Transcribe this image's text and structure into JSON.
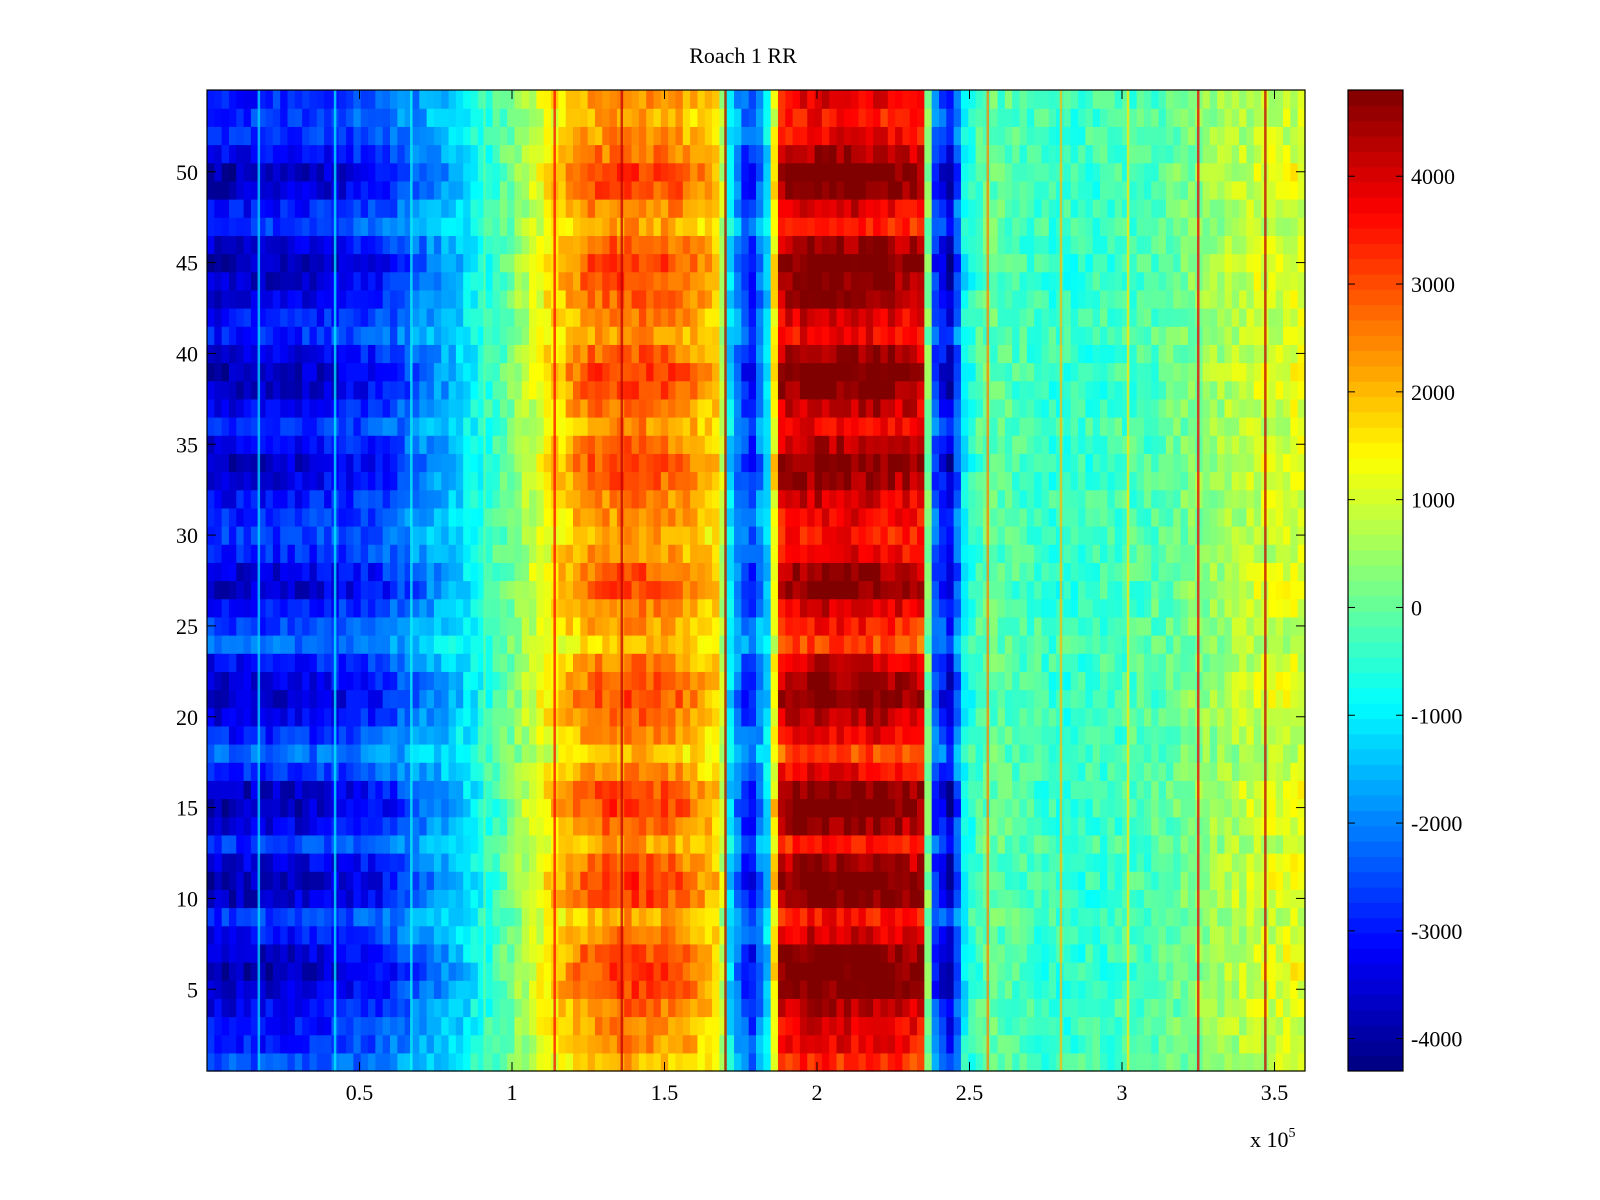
{
  "chart_data": {
    "type": "heatmap",
    "title": "Roach 1 RR",
    "xlabel": "",
    "ylabel": "",
    "x_exponent_label": "x 10",
    "x_exponent": "5",
    "xlim": [
      0,
      3.6
    ],
    "ylim": [
      0.5,
      54.5
    ],
    "x_ticks": [
      0.5,
      1,
      1.5,
      2,
      2.5,
      3,
      3.5
    ],
    "x_tick_labels": [
      "0.5",
      "1",
      "1.5",
      "2",
      "2.5",
      "3",
      "3.5"
    ],
    "y_ticks": [
      5,
      10,
      15,
      20,
      25,
      30,
      35,
      40,
      45,
      50
    ],
    "y_tick_labels": [
      "5",
      "10",
      "15",
      "20",
      "25",
      "30",
      "35",
      "40",
      "45",
      "50"
    ],
    "colormap": "jet",
    "clim": [
      -4300,
      4800
    ],
    "colorbar_ticks": [
      -4000,
      -3000,
      -2000,
      -1000,
      0,
      1000,
      2000,
      3000,
      4000
    ],
    "colorbar_tick_labels": [
      "-4000",
      "-3000",
      "-2000",
      "-1000",
      "0",
      "1000",
      "2000",
      "3000",
      "4000"
    ],
    "n_rows": 54,
    "column_profile": [
      {
        "x": 0.0,
        "value": -3600
      },
      {
        "x": 0.3,
        "value": -3400
      },
      {
        "x": 0.55,
        "value": -3000
      },
      {
        "x": 0.7,
        "value": -2200
      },
      {
        "x": 0.85,
        "value": -1200
      },
      {
        "x": 1.0,
        "value": 200
      },
      {
        "x": 1.12,
        "value": 1600
      },
      {
        "x": 1.25,
        "value": 2700
      },
      {
        "x": 1.4,
        "value": 3000
      },
      {
        "x": 1.55,
        "value": 2700
      },
      {
        "x": 1.68,
        "value": 1800
      },
      {
        "x": 1.72,
        "value": -1500
      },
      {
        "x": 1.78,
        "value": -3200
      },
      {
        "x": 1.84,
        "value": -1200
      },
      {
        "x": 1.88,
        "value": 4300
      },
      {
        "x": 2.0,
        "value": 4700
      },
      {
        "x": 2.2,
        "value": 4600
      },
      {
        "x": 2.34,
        "value": 4200
      },
      {
        "x": 2.38,
        "value": -2500
      },
      {
        "x": 2.44,
        "value": -3800
      },
      {
        "x": 2.48,
        "value": -1000
      },
      {
        "x": 2.55,
        "value": 0
      },
      {
        "x": 2.8,
        "value": -500
      },
      {
        "x": 3.1,
        "value": -200
      },
      {
        "x": 3.3,
        "value": 500
      },
      {
        "x": 3.45,
        "value": 1000
      },
      {
        "x": 3.6,
        "value": 1200
      }
    ],
    "row_modulation": [
      0.3,
      0.5,
      0.6,
      0.7,
      0.9,
      1.0,
      0.9,
      0.6,
      0.4,
      0.9,
      1.0,
      0.8,
      0.4,
      0.8,
      1.0,
      0.9,
      0.5,
      0.2,
      0.5,
      0.7,
      0.9,
      0.8,
      0.6,
      0.2,
      0.4,
      0.6,
      0.9,
      0.8,
      0.5,
      0.4,
      0.5,
      0.6,
      0.8,
      0.9,
      0.7,
      0.5,
      0.7,
      0.9,
      1.0,
      0.8,
      0.5,
      0.6,
      0.8,
      0.9,
      1.0,
      0.8,
      0.4,
      0.6,
      0.9,
      1.0,
      0.7,
      0.5,
      0.4,
      0.5
    ],
    "vertical_streaks": [
      {
        "x": 0.17,
        "value": -1200
      },
      {
        "x": 0.42,
        "value": -1000
      },
      {
        "x": 0.67,
        "value": -800
      },
      {
        "x": 0.91,
        "value": 0
      },
      {
        "x": 1.14,
        "value": 3600
      },
      {
        "x": 1.36,
        "value": 4200
      },
      {
        "x": 1.7,
        "value": 4500
      },
      {
        "x": 2.56,
        "value": 2500
      },
      {
        "x": 2.8,
        "value": 2000
      },
      {
        "x": 3.02,
        "value": 1600
      },
      {
        "x": 3.25,
        "value": 3800
      },
      {
        "x": 3.47,
        "value": 4200
      }
    ]
  }
}
